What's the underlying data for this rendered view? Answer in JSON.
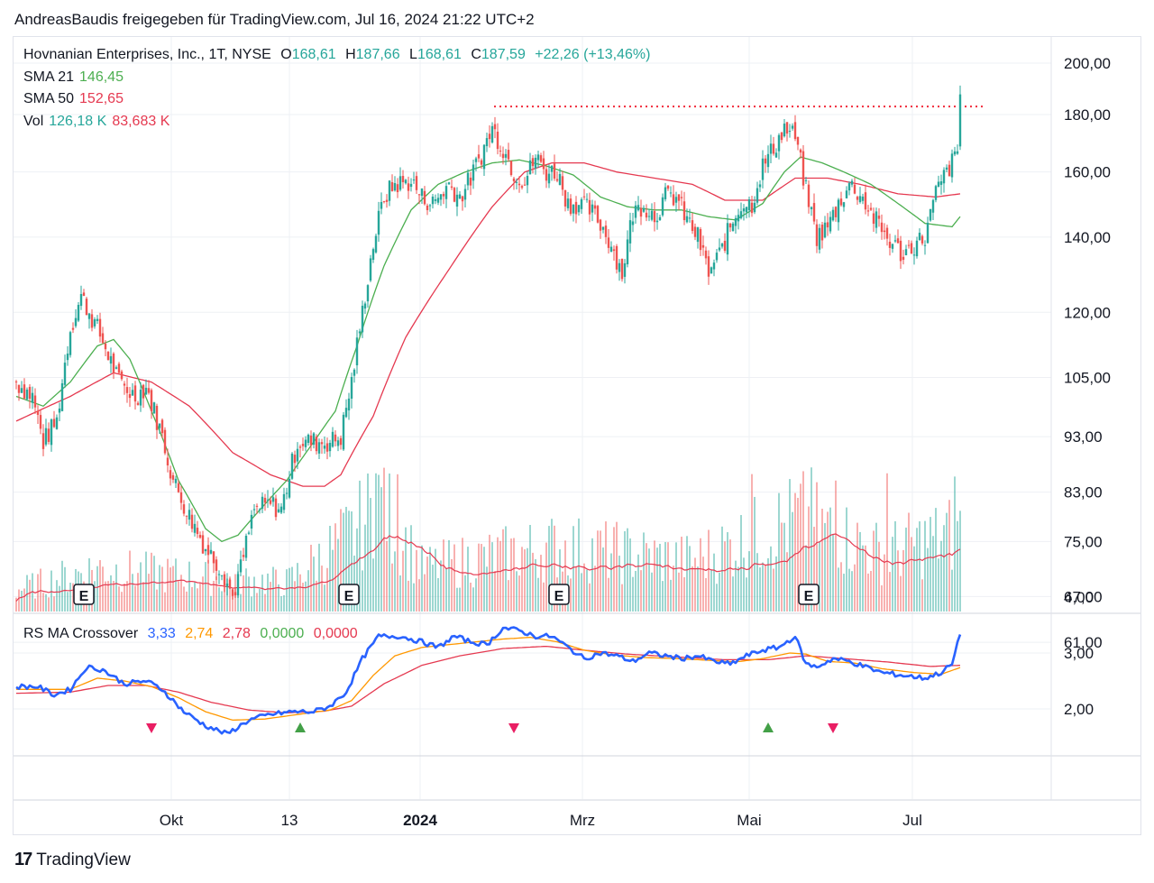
{
  "header": "AndreasBaudis freigegeben für TradingView.com, Jul 16, 2024 21:22 UTC+2",
  "footer": {
    "logo": "17",
    "brand": "TradingView"
  },
  "legend": {
    "symbol": "Hovnanian Enterprises, Inc., 1T, NYSE",
    "o_label": "O",
    "o": "168,61",
    "h_label": "H",
    "h": "187,66",
    "l_label": "L",
    "l": "168,61",
    "c_label": "C",
    "c": "187,59",
    "change": "+22,26 (+13,46%)",
    "sma21_label": "SMA 21",
    "sma21": "146,45",
    "sma50_label": "SMA 50",
    "sma50": "152,65",
    "vol_label": "Vol",
    "vol1": "126,18 K",
    "vol2": "83,683 K"
  },
  "indicator_legend": {
    "name": "RS MA Crossover",
    "v1": "3,33",
    "v2": "2,74",
    "v3": "2,78",
    "v4": "0,0000",
    "v5": "0,0000"
  },
  "colors": {
    "up": "#26a69a",
    "down": "#ef5350",
    "sma21": "#4caf50",
    "sma50": "#e53950",
    "rs": "#2962ff",
    "rs_fast": "#ff9800",
    "rs_slow": "#e53950",
    "resistance": "#f23645",
    "grid": "#eef0f4"
  },
  "chart_data": [
    {
      "type": "candlestick",
      "title": "Hovnanian Enterprises, Inc., 1T, NYSE",
      "y_scale": "log",
      "y_ticks": [
        "200,00",
        "180,00",
        "160,00",
        "140,00",
        "120,00",
        "105,00",
        "93,00",
        "83,00",
        "75,00",
        "67,00",
        "61,00"
      ],
      "y_tick_values": [
        200,
        180,
        160,
        140,
        120,
        105,
        93,
        83,
        75,
        67,
        61
      ],
      "x_ticks": [
        "Okt",
        "13",
        "2024",
        "Mrz",
        "Mai",
        "Jul"
      ],
      "earnings_markers": [
        "E",
        "E",
        "E",
        "E"
      ],
      "resistance_level": 183,
      "anchors_close": [
        [
          0,
          104
        ],
        [
          6,
          101
        ],
        [
          10,
          92
        ],
        [
          15,
          96
        ],
        [
          20,
          116
        ],
        [
          24,
          124
        ],
        [
          30,
          116
        ],
        [
          38,
          104
        ],
        [
          44,
          101
        ],
        [
          48,
          103
        ],
        [
          54,
          93
        ],
        [
          58,
          85
        ],
        [
          64,
          79
        ],
        [
          70,
          74
        ],
        [
          76,
          71
        ],
        [
          80,
          67
        ],
        [
          83,
          71
        ],
        [
          88,
          80
        ],
        [
          94,
          81
        ],
        [
          98,
          80
        ],
        [
          104,
          92
        ],
        [
          110,
          92
        ],
        [
          116,
          92
        ],
        [
          120,
          93
        ],
        [
          124,
          104
        ],
        [
          128,
          120
        ],
        [
          132,
          138
        ],
        [
          136,
          152
        ],
        [
          140,
          156
        ],
        [
          146,
          157
        ],
        [
          150,
          152
        ],
        [
          154,
          150
        ],
        [
          160,
          156
        ],
        [
          164,
          152
        ],
        [
          168,
          158
        ],
        [
          172,
          166
        ],
        [
          176,
          175
        ],
        [
          180,
          168
        ],
        [
          184,
          160
        ],
        [
          188,
          157
        ],
        [
          192,
          165
        ],
        [
          196,
          160
        ],
        [
          200,
          160
        ],
        [
          204,
          150
        ],
        [
          208,
          150
        ],
        [
          212,
          148
        ],
        [
          216,
          144
        ],
        [
          220,
          138
        ],
        [
          224,
          130
        ],
        [
          228,
          147
        ],
        [
          232,
          150
        ],
        [
          236,
          146
        ],
        [
          240,
          152
        ],
        [
          244,
          152
        ],
        [
          248,
          145
        ],
        [
          252,
          140
        ],
        [
          256,
          130
        ],
        [
          260,
          135
        ],
        [
          264,
          143
        ],
        [
          268,
          150
        ],
        [
          272,
          150
        ],
        [
          276,
          162
        ],
        [
          280,
          168
        ],
        [
          284,
          175
        ],
        [
          288,
          172
        ],
        [
          292,
          154
        ],
        [
          296,
          140
        ],
        [
          300,
          143
        ],
        [
          304,
          150
        ],
        [
          308,
          156
        ],
        [
          312,
          153
        ],
        [
          316,
          147
        ],
        [
          320,
          142
        ],
        [
          324,
          138
        ],
        [
          328,
          135
        ],
        [
          332,
          138
        ],
        [
          336,
          140
        ],
        [
          340,
          153
        ],
        [
          344,
          160
        ],
        [
          348,
          166
        ],
        [
          349,
          187.6
        ]
      ],
      "sma21_anchors": [
        [
          0,
          101
        ],
        [
          10,
          99
        ],
        [
          20,
          104
        ],
        [
          30,
          112
        ],
        [
          36,
          113.5
        ],
        [
          42,
          109
        ],
        [
          50,
          98
        ],
        [
          60,
          85
        ],
        [
          70,
          77
        ],
        [
          76,
          75
        ],
        [
          82,
          76
        ],
        [
          90,
          80
        ],
        [
          100,
          85
        ],
        [
          110,
          92
        ],
        [
          118,
          98
        ],
        [
          126,
          112
        ],
        [
          136,
          132
        ],
        [
          146,
          148
        ],
        [
          156,
          156
        ],
        [
          166,
          160
        ],
        [
          176,
          163
        ],
        [
          186,
          164
        ],
        [
          196,
          162
        ],
        [
          206,
          159
        ],
        [
          216,
          152
        ],
        [
          226,
          149
        ],
        [
          236,
          148
        ],
        [
          246,
          148
        ],
        [
          256,
          146
        ],
        [
          266,
          145
        ],
        [
          276,
          150
        ],
        [
          284,
          160
        ],
        [
          290,
          165
        ],
        [
          298,
          163
        ],
        [
          306,
          160
        ],
        [
          316,
          156
        ],
        [
          326,
          150
        ],
        [
          336,
          144
        ],
        [
          346,
          143
        ],
        [
          349,
          146
        ]
      ],
      "sma50_anchors": [
        [
          0,
          96
        ],
        [
          20,
          101
        ],
        [
          36,
          106
        ],
        [
          50,
          104
        ],
        [
          64,
          99
        ],
        [
          80,
          90
        ],
        [
          94,
          86
        ],
        [
          106,
          84
        ],
        [
          114,
          84
        ],
        [
          120,
          86
        ],
        [
          132,
          97
        ],
        [
          144,
          114
        ],
        [
          160,
          131
        ],
        [
          176,
          149
        ],
        [
          188,
          160
        ],
        [
          198,
          163
        ],
        [
          210,
          163
        ],
        [
          222,
          160
        ],
        [
          236,
          158
        ],
        [
          250,
          156
        ],
        [
          262,
          151
        ],
        [
          276,
          151
        ],
        [
          288,
          158
        ],
        [
          300,
          158
        ],
        [
          312,
          156
        ],
        [
          326,
          153
        ],
        [
          340,
          152
        ],
        [
          349,
          153
        ]
      ]
    },
    {
      "type": "bar",
      "title": "Vol",
      "series": [
        {
          "name": "Vol",
          "values_anchors": [
            [
              0,
              0.15
            ],
            [
              30,
              0.3
            ],
            [
              60,
              0.25
            ],
            [
              100,
              0.2
            ],
            [
              125,
              0.55
            ],
            [
              135,
              0.75
            ],
            [
              150,
              0.3
            ],
            [
              200,
              0.45
            ],
            [
              250,
              0.35
            ],
            [
              290,
              0.65
            ],
            [
              320,
              0.4
            ],
            [
              349,
              0.55
            ]
          ]
        }
      ]
    },
    {
      "type": "line",
      "title": "RS MA Crossover",
      "y_ticks": [
        "4,00",
        "3,00",
        "2,00"
      ],
      "y_tick_values": [
        4,
        3,
        2
      ],
      "rs_anchors": [
        [
          0,
          2.4
        ],
        [
          8,
          2.4
        ],
        [
          14,
          2.25
        ],
        [
          20,
          2.35
        ],
        [
          26,
          2.75
        ],
        [
          32,
          2.7
        ],
        [
          40,
          2.45
        ],
        [
          48,
          2.5
        ],
        [
          54,
          2.35
        ],
        [
          62,
          1.95
        ],
        [
          70,
          1.7
        ],
        [
          78,
          1.55
        ],
        [
          86,
          1.8
        ],
        [
          94,
          1.9
        ],
        [
          102,
          1.95
        ],
        [
          110,
          1.95
        ],
        [
          116,
          2.05
        ],
        [
          122,
          2.3
        ],
        [
          128,
          2.9
        ],
        [
          134,
          3.3
        ],
        [
          142,
          3.3
        ],
        [
          150,
          3.2
        ],
        [
          156,
          3.1
        ],
        [
          162,
          3.3
        ],
        [
          168,
          3.2
        ],
        [
          174,
          3.15
        ],
        [
          180,
          3.45
        ],
        [
          186,
          3.4
        ],
        [
          192,
          3.3
        ],
        [
          198,
          3.3
        ],
        [
          204,
          3.1
        ],
        [
          210,
          2.9
        ],
        [
          216,
          3.0
        ],
        [
          222,
          2.95
        ],
        [
          228,
          2.85
        ],
        [
          234,
          3.0
        ],
        [
          240,
          2.95
        ],
        [
          246,
          2.9
        ],
        [
          252,
          2.95
        ],
        [
          258,
          2.85
        ],
        [
          264,
          2.8
        ],
        [
          270,
          2.95
        ],
        [
          276,
          3.05
        ],
        [
          282,
          3.1
        ],
        [
          288,
          3.3
        ],
        [
          292,
          2.8
        ],
        [
          296,
          2.75
        ],
        [
          302,
          2.9
        ],
        [
          308,
          2.85
        ],
        [
          314,
          2.75
        ],
        [
          320,
          2.65
        ],
        [
          328,
          2.6
        ],
        [
          336,
          2.55
        ],
        [
          342,
          2.65
        ],
        [
          346,
          2.8
        ],
        [
          349,
          3.33
        ]
      ],
      "fast_anchors": [
        [
          0,
          2.35
        ],
        [
          20,
          2.35
        ],
        [
          30,
          2.55
        ],
        [
          40,
          2.5
        ],
        [
          50,
          2.4
        ],
        [
          60,
          2.2
        ],
        [
          70,
          1.95
        ],
        [
          80,
          1.8
        ],
        [
          92,
          1.82
        ],
        [
          104,
          1.9
        ],
        [
          116,
          1.98
        ],
        [
          124,
          2.15
        ],
        [
          132,
          2.6
        ],
        [
          140,
          2.95
        ],
        [
          150,
          3.1
        ],
        [
          160,
          3.15
        ],
        [
          170,
          3.2
        ],
        [
          180,
          3.25
        ],
        [
          190,
          3.28
        ],
        [
          200,
          3.2
        ],
        [
          210,
          3.05
        ],
        [
          220,
          2.97
        ],
        [
          232,
          2.92
        ],
        [
          244,
          2.9
        ],
        [
          256,
          2.87
        ],
        [
          266,
          2.84
        ],
        [
          276,
          2.9
        ],
        [
          286,
          3.0
        ],
        [
          292,
          2.98
        ],
        [
          300,
          2.85
        ],
        [
          310,
          2.82
        ],
        [
          320,
          2.72
        ],
        [
          332,
          2.65
        ],
        [
          342,
          2.62
        ],
        [
          349,
          2.74
        ]
      ],
      "slow_anchors": [
        [
          0,
          2.28
        ],
        [
          20,
          2.3
        ],
        [
          34,
          2.42
        ],
        [
          48,
          2.42
        ],
        [
          60,
          2.3
        ],
        [
          72,
          2.12
        ],
        [
          86,
          1.98
        ],
        [
          100,
          1.93
        ],
        [
          114,
          1.96
        ],
        [
          124,
          2.05
        ],
        [
          136,
          2.45
        ],
        [
          150,
          2.78
        ],
        [
          164,
          2.95
        ],
        [
          180,
          3.08
        ],
        [
          196,
          3.12
        ],
        [
          210,
          3.05
        ],
        [
          226,
          2.98
        ],
        [
          244,
          2.93
        ],
        [
          262,
          2.88
        ],
        [
          278,
          2.88
        ],
        [
          292,
          2.95
        ],
        [
          306,
          2.9
        ],
        [
          322,
          2.84
        ],
        [
          338,
          2.76
        ],
        [
          349,
          2.78
        ]
      ],
      "signals": [
        {
          "i": 50,
          "dir": "down"
        },
        {
          "i": 105,
          "dir": "up"
        },
        {
          "i": 184,
          "dir": "down"
        },
        {
          "i": 278,
          "dir": "up"
        },
        {
          "i": 302,
          "dir": "down"
        }
      ]
    }
  ]
}
